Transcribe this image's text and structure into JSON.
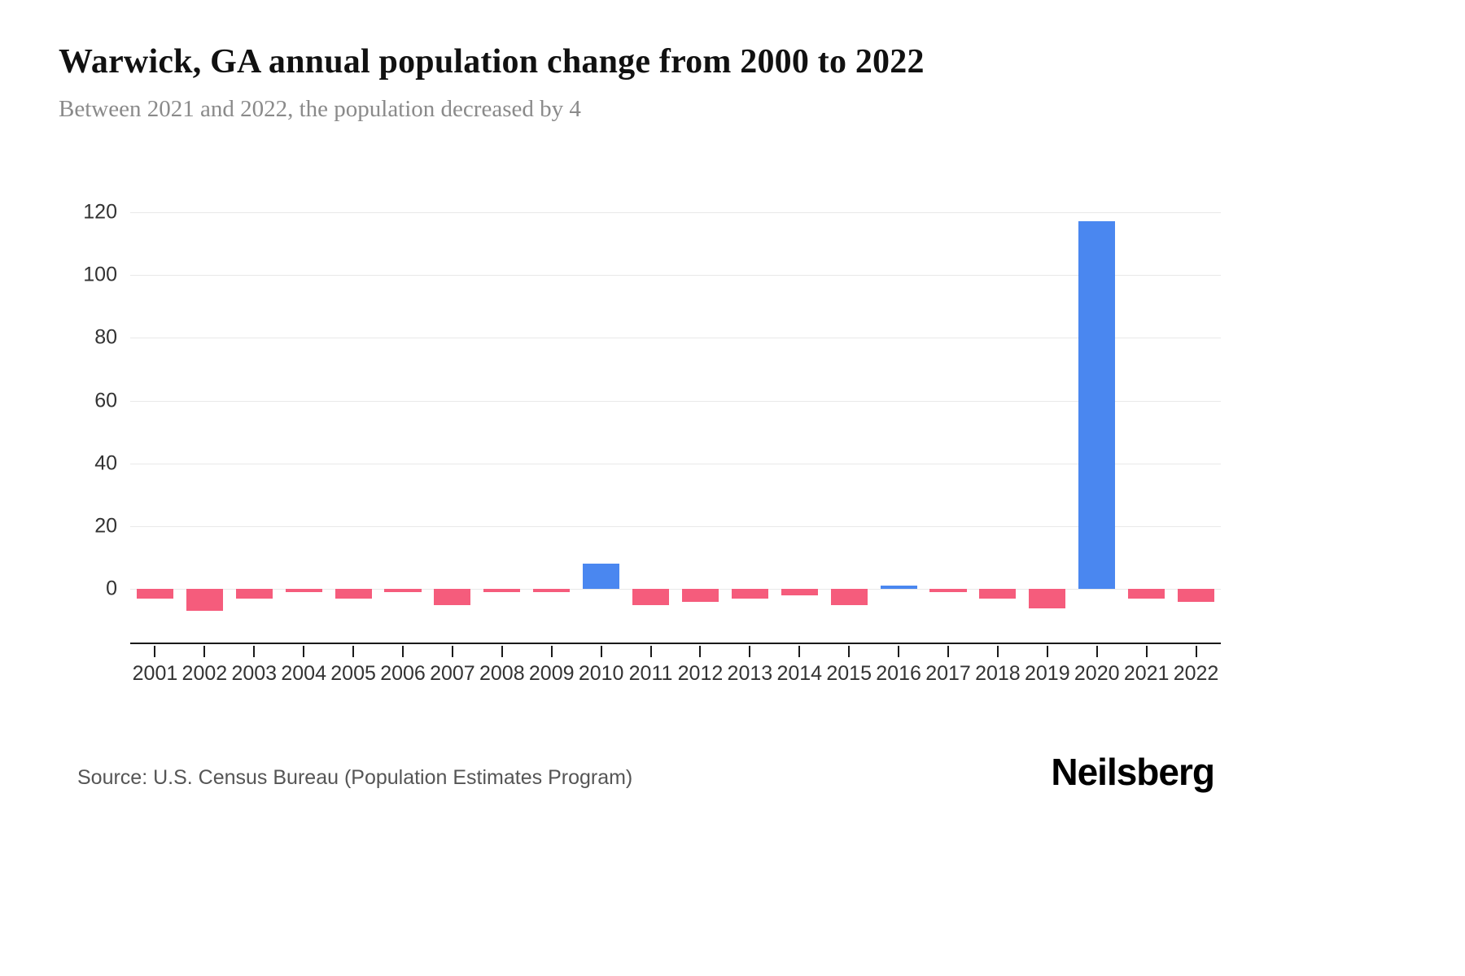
{
  "chart_data": {
    "type": "bar",
    "title": "Warwick, GA annual population change from 2000 to 2022",
    "subtitle": "Between 2021 and 2022, the population decreased by 4",
    "categories": [
      "2001",
      "2002",
      "2003",
      "2004",
      "2005",
      "2006",
      "2007",
      "2008",
      "2009",
      "2010",
      "2011",
      "2012",
      "2013",
      "2014",
      "2015",
      "2016",
      "2017",
      "2018",
      "2019",
      "2020",
      "2021",
      "2022"
    ],
    "values": [
      -3,
      -7,
      -3,
      -1,
      -3,
      -1,
      -5,
      -1,
      -1,
      8,
      -5,
      -4,
      -3,
      -2,
      -5,
      1,
      -1,
      -3,
      -6,
      117,
      -3,
      -4
    ],
    "xlabel": "",
    "ylabel": "",
    "yticks": [
      0,
      20,
      40,
      60,
      80,
      100,
      120
    ],
    "ylim": [
      -17,
      128
    ],
    "grid": "horizontal",
    "legend": "none",
    "positive_color": "#4A87F0",
    "negative_color": "#F55C7C",
    "gridline_color": "#e9e9e9",
    "axis_color": "#1a1a1a"
  },
  "footer": {
    "source": "Source: U.S. Census Bureau (Population Estimates Program)",
    "brand": "Neilsberg"
  }
}
